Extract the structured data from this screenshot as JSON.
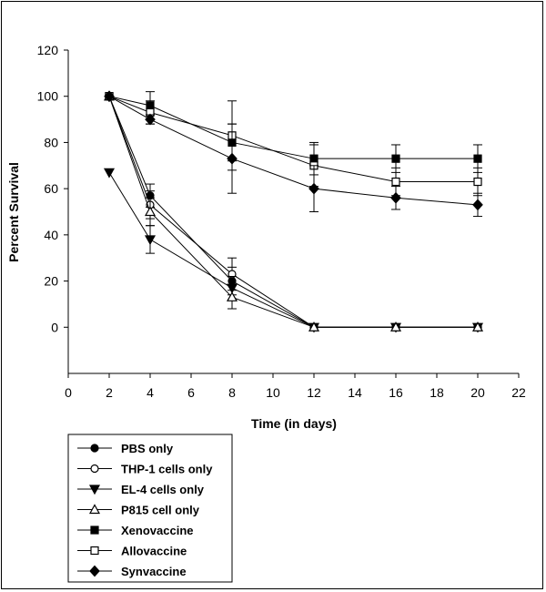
{
  "chart_data": {
    "type": "line",
    "title": "",
    "xlabel": "Time (in days)",
    "ylabel": "Percent Survival",
    "xlim": [
      0,
      22
    ],
    "ylim": [
      -20,
      120
    ],
    "xticks": [
      0,
      2,
      4,
      6,
      8,
      10,
      12,
      14,
      16,
      18,
      20,
      22
    ],
    "yticks": [
      0,
      20,
      40,
      60,
      80,
      100,
      120
    ],
    "grid": false,
    "legend_position": "bottom-left",
    "series": [
      {
        "name": "PBS only",
        "marker": "filled-circle",
        "x": [
          2,
          4,
          8,
          12,
          16,
          20
        ],
        "y": [
          100,
          57,
          20,
          0,
          0,
          0
        ],
        "err": [
          0,
          5,
          6,
          0,
          0,
          0
        ]
      },
      {
        "name": "THP-1 cells only",
        "marker": "open-circle",
        "x": [
          2,
          4,
          8,
          12,
          16,
          20
        ],
        "y": [
          100,
          53,
          23,
          0,
          0,
          0
        ],
        "err": [
          0,
          6,
          7,
          0,
          0,
          0
        ]
      },
      {
        "name": "EL-4 cells only",
        "marker": "filled-triangle-down",
        "x": [
          2,
          4,
          8,
          12,
          16,
          20
        ],
        "y": [
          67,
          38,
          17,
          0,
          0,
          0
        ],
        "err": [
          0,
          6,
          5,
          0,
          0,
          0
        ]
      },
      {
        "name": "P815 cell only",
        "marker": "open-triangle-up",
        "x": [
          2,
          4,
          8,
          12,
          16,
          20
        ],
        "y": [
          100,
          50,
          13,
          0,
          0,
          0
        ],
        "err": [
          0,
          6,
          5,
          0,
          0,
          0
        ]
      },
      {
        "name": "Xenovaccine",
        "marker": "filled-square",
        "x": [
          2,
          4,
          8,
          12,
          16,
          20
        ],
        "y": [
          100,
          96,
          80,
          73,
          73,
          73
        ],
        "err": [
          0,
          6,
          8,
          7,
          6,
          6
        ]
      },
      {
        "name": "Allovaccine",
        "marker": "open-square",
        "x": [
          2,
          4,
          8,
          12,
          16,
          20
        ],
        "y": [
          100,
          93,
          83,
          70,
          63,
          63
        ],
        "err": [
          0,
          5,
          15,
          9,
          6,
          6
        ]
      },
      {
        "name": "Synvaccine",
        "marker": "filled-diamond",
        "x": [
          2,
          4,
          8,
          12,
          16,
          20
        ],
        "y": [
          100,
          90,
          73,
          60,
          56,
          53
        ],
        "err": [
          0,
          2,
          15,
          10,
          5,
          5
        ]
      }
    ]
  }
}
